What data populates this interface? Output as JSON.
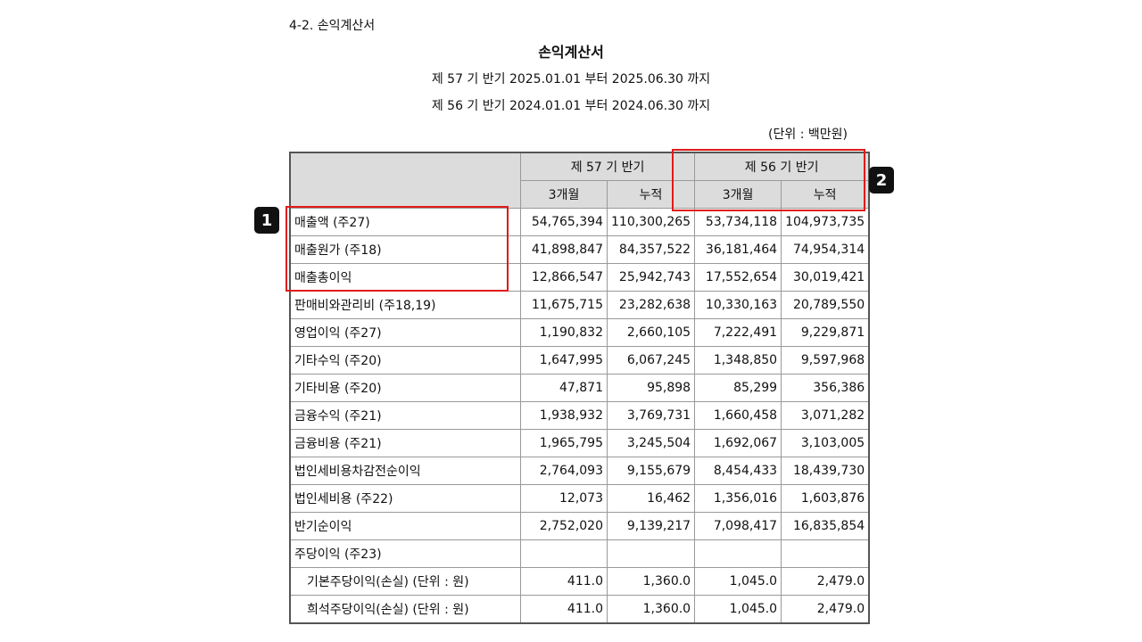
{
  "section_label": "4-2. 손익계산서",
  "title": "손익계산서",
  "periods": [
    "제 57 기 반기 2025.01.01 부터 2025.06.30 까지",
    "제 56 기 반기 2024.01.01 부터 2024.06.30 까지"
  ],
  "unit": "(단위 : 백만원)",
  "header": {
    "groups": [
      "제 57 기 반기",
      "제 56 기 반기"
    ],
    "sub": [
      "3개월",
      "누적",
      "3개월",
      "누적"
    ]
  },
  "rows": [
    {
      "label": "매출액 (주27)",
      "values": [
        "54,765,394",
        "110,300,265",
        "53,734,118",
        "104,973,735"
      ]
    },
    {
      "label": "매출원가 (주18)",
      "values": [
        "41,898,847",
        "84,357,522",
        "36,181,464",
        "74,954,314"
      ]
    },
    {
      "label": "매출총이익",
      "values": [
        "12,866,547",
        "25,942,743",
        "17,552,654",
        "30,019,421"
      ]
    },
    {
      "label": "판매비와관리비 (주18,19)",
      "values": [
        "11,675,715",
        "23,282,638",
        "10,330,163",
        "20,789,550"
      ]
    },
    {
      "label": "영업이익 (주27)",
      "values": [
        "1,190,832",
        "2,660,105",
        "7,222,491",
        "9,229,871"
      ]
    },
    {
      "label": "기타수익 (주20)",
      "values": [
        "1,647,995",
        "6,067,245",
        "1,348,850",
        "9,597,968"
      ]
    },
    {
      "label": "기타비용 (주20)",
      "values": [
        "47,871",
        "95,898",
        "85,299",
        "356,386"
      ]
    },
    {
      "label": "금융수익 (주21)",
      "values": [
        "1,938,932",
        "3,769,731",
        "1,660,458",
        "3,071,282"
      ]
    },
    {
      "label": "금융비용 (주21)",
      "values": [
        "1,965,795",
        "3,245,504",
        "1,692,067",
        "3,103,005"
      ]
    },
    {
      "label": "법인세비용차감전순이익",
      "values": [
        "2,764,093",
        "9,155,679",
        "8,454,433",
        "18,439,730"
      ]
    },
    {
      "label": "법인세비용 (주22)",
      "values": [
        "12,073",
        "16,462",
        "1,356,016",
        "1,603,876"
      ]
    },
    {
      "label": "반기순이익",
      "values": [
        "2,752,020",
        "9,139,217",
        "7,098,417",
        "16,835,854"
      ]
    },
    {
      "label": "주당이익  (주23)",
      "values": [
        "",
        "",
        "",
        ""
      ]
    },
    {
      "label": "기본주당이익(손실) (단위 : 원)",
      "values": [
        "411.0",
        "1,360.0",
        "1,045.0",
        "2,479.0"
      ],
      "indent": true
    },
    {
      "label": "희석주당이익(손실) (단위 : 원)",
      "values": [
        "411.0",
        "1,360.0",
        "1,045.0",
        "2,479.0"
      ],
      "indent": true
    }
  ],
  "annotations": [
    "1",
    "2"
  ],
  "colors": {
    "highlight": "#e01b1b",
    "header_bg": "#dcdcdc"
  }
}
